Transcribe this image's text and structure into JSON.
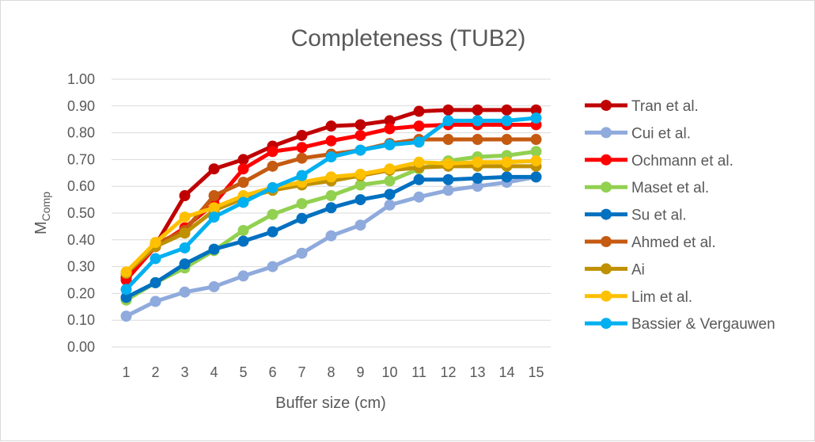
{
  "chart_data": {
    "type": "line",
    "title": "Completeness (TUB2)",
    "xlabel": "Buffer size (cm)",
    "ylabel_main": "M",
    "ylabel_sub": "Comp",
    "x": [
      1,
      2,
      3,
      4,
      5,
      6,
      7,
      8,
      9,
      10,
      11,
      12,
      13,
      14,
      15
    ],
    "ylim": [
      0,
      1
    ],
    "yticks": [
      "0.00",
      "0.10",
      "0.20",
      "0.30",
      "0.40",
      "0.50",
      "0.60",
      "0.70",
      "0.80",
      "0.90",
      "1.00"
    ],
    "grid": true,
    "legend_position": "right",
    "series": [
      {
        "name": "Tran et al.",
        "color": "#C00000",
        "values": [
          0.26,
          0.38,
          0.565,
          0.665,
          0.7,
          0.75,
          0.79,
          0.825,
          0.83,
          0.845,
          0.88,
          0.885,
          0.885,
          0.885,
          0.885
        ]
      },
      {
        "name": "Cui et al.",
        "color": "#8FAADC",
        "values": [
          0.115,
          0.17,
          0.205,
          0.225,
          0.265,
          0.3,
          0.35,
          0.415,
          0.455,
          0.53,
          0.56,
          0.585,
          0.6,
          0.615,
          0.635
        ]
      },
      {
        "name": "Ochmann et al.",
        "color": "#FF0000",
        "values": [
          0.25,
          0.375,
          0.445,
          0.535,
          0.665,
          0.73,
          0.745,
          0.77,
          0.79,
          0.815,
          0.825,
          0.83,
          0.83,
          0.83,
          0.83
        ]
      },
      {
        "name": "Maset et al.",
        "color": "#92D050",
        "values": [
          0.175,
          0.24,
          0.295,
          0.36,
          0.435,
          0.495,
          0.535,
          0.565,
          0.605,
          0.62,
          0.665,
          0.695,
          0.71,
          0.715,
          0.73
        ]
      },
      {
        "name": "Su et al.",
        "color": "#0070C0",
        "values": [
          0.185,
          0.24,
          0.31,
          0.365,
          0.395,
          0.43,
          0.48,
          0.52,
          0.55,
          0.57,
          0.625,
          0.625,
          0.63,
          0.635,
          0.635
        ]
      },
      {
        "name": "Ahmed et al.",
        "color": "#C55A11",
        "values": [
          0.275,
          0.385,
          0.435,
          0.565,
          0.615,
          0.675,
          0.705,
          0.72,
          0.735,
          0.76,
          0.775,
          0.775,
          0.775,
          0.775,
          0.775
        ]
      },
      {
        "name": "Ai",
        "color": "#BF9000",
        "values": [
          0.275,
          0.375,
          0.425,
          0.51,
          0.555,
          0.585,
          0.605,
          0.62,
          0.64,
          0.66,
          0.67,
          0.675,
          0.675,
          0.675,
          0.675
        ]
      },
      {
        "name": "Lim et al.",
        "color": "#FFC000",
        "values": [
          0.28,
          0.39,
          0.485,
          0.52,
          0.565,
          0.595,
          0.615,
          0.635,
          0.645,
          0.665,
          0.69,
          0.685,
          0.69,
          0.69,
          0.695
        ]
      },
      {
        "name": "Bassier & Vergauwen",
        "color": "#00B0F0",
        "values": [
          0.215,
          0.33,
          0.37,
          0.485,
          0.54,
          0.595,
          0.64,
          0.71,
          0.735,
          0.755,
          0.765,
          0.845,
          0.845,
          0.845,
          0.855
        ]
      }
    ]
  }
}
